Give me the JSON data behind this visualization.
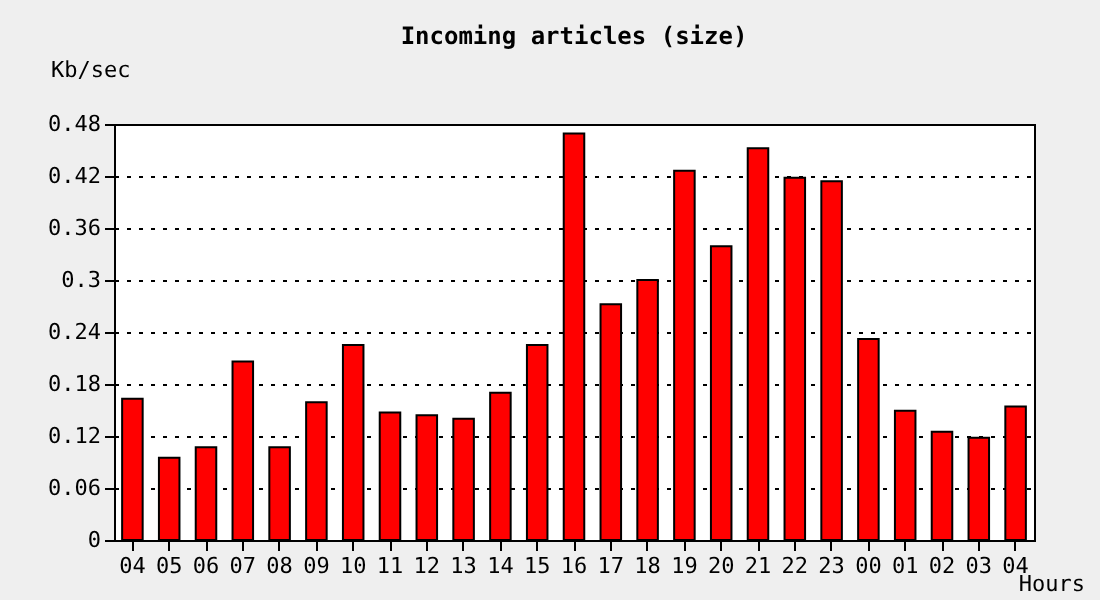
{
  "chart_data": {
    "type": "bar",
    "title": "Incoming articles (size)",
    "ylabel": "Kb/sec",
    "xlabel": "Hours",
    "categories": [
      "04",
      "05",
      "06",
      "07",
      "08",
      "09",
      "10",
      "11",
      "12",
      "13",
      "14",
      "15",
      "16",
      "17",
      "18",
      "19",
      "20",
      "21",
      "22",
      "23",
      "00",
      "01",
      "02",
      "03",
      "04"
    ],
    "values": [
      0.163,
      0.095,
      0.107,
      0.206,
      0.107,
      0.159,
      0.225,
      0.147,
      0.144,
      0.14,
      0.17,
      0.225,
      0.469,
      0.272,
      0.3,
      0.426,
      0.339,
      0.452,
      0.418,
      0.414,
      0.232,
      0.149,
      0.125,
      0.118,
      0.154
    ],
    "color": "#ff0000",
    "ylim": [
      0,
      0.48
    ],
    "yticks": [
      0,
      0.06,
      0.12,
      0.18,
      0.24,
      0.3,
      0.36,
      0.42,
      0.48
    ],
    "grid": "y"
  }
}
